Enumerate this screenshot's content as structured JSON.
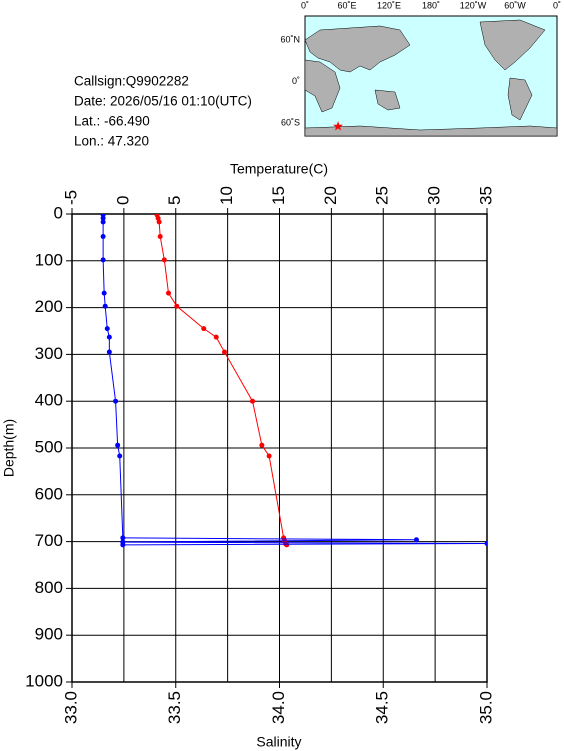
{
  "info": {
    "callsign": "Callsign:Q9902282",
    "date": "Date:  2026/05/16 01:10(UTC)",
    "lat": "Lat.:  -66.490",
    "lon": "Lon.:   47.320"
  },
  "map": {
    "lon_labels": [
      "0˚",
      "60˚E",
      "120˚E",
      "180˚",
      "120˚W",
      "60˚W",
      "0˚"
    ],
    "lat_labels": [
      "60˚N",
      "0˚",
      "60˚S"
    ],
    "marker": {
      "lon": 47.32,
      "lat": -66.49
    }
  },
  "chart_data": {
    "type": "line",
    "x_label": "Temperature(C)",
    "x2_label": "Salinity",
    "y_label": "Depth(m)",
    "xlim": [
      -5,
      35
    ],
    "xticks": [
      -5,
      0,
      5,
      10,
      15,
      20,
      25,
      30,
      35
    ],
    "x2lim": [
      33,
      35
    ],
    "x2ticks": [
      {
        "value": 33,
        "label": "33.0"
      },
      {
        "value": 33.5,
        "label": "33.5"
      },
      {
        "value": 34,
        "label": "34.0"
      },
      {
        "value": 34.5,
        "label": "34.5"
      },
      {
        "value": 35,
        "label": "35.0"
      }
    ],
    "ylim": [
      0,
      1000
    ],
    "yticks": [
      0,
      100,
      200,
      300,
      400,
      500,
      600,
      700,
      800,
      900,
      1000
    ],
    "grid": true,
    "series": [
      {
        "name": "Temperature",
        "color": "#ff0000",
        "depth": [
          2,
          9,
          17,
          48,
          98,
          169,
          197,
          245,
          263,
          295,
          400,
          494,
          517,
          692,
          699,
          705,
          707
        ],
        "values": [
          3.2,
          3.3,
          3.4,
          3.5,
          3.9,
          4.3,
          5.1,
          7.7,
          8.9,
          9.7,
          12.4,
          13.3,
          14.0,
          15.4,
          15.5,
          15.6,
          15.7
        ]
      },
      {
        "name": "Salinity",
        "color": "#0000ff",
        "axis": "x2",
        "depth": [
          2,
          9,
          17,
          48,
          98,
          169,
          197,
          245,
          263,
          295,
          400,
          494,
          517,
          692,
          696,
          701,
          704,
          707
        ],
        "values": [
          33.15,
          33.15,
          33.15,
          33.15,
          33.15,
          33.155,
          33.16,
          33.17,
          33.18,
          33.18,
          33.21,
          33.22,
          33.23,
          33.245,
          34.66,
          33.245,
          35.0,
          33.245
        ]
      }
    ]
  }
}
